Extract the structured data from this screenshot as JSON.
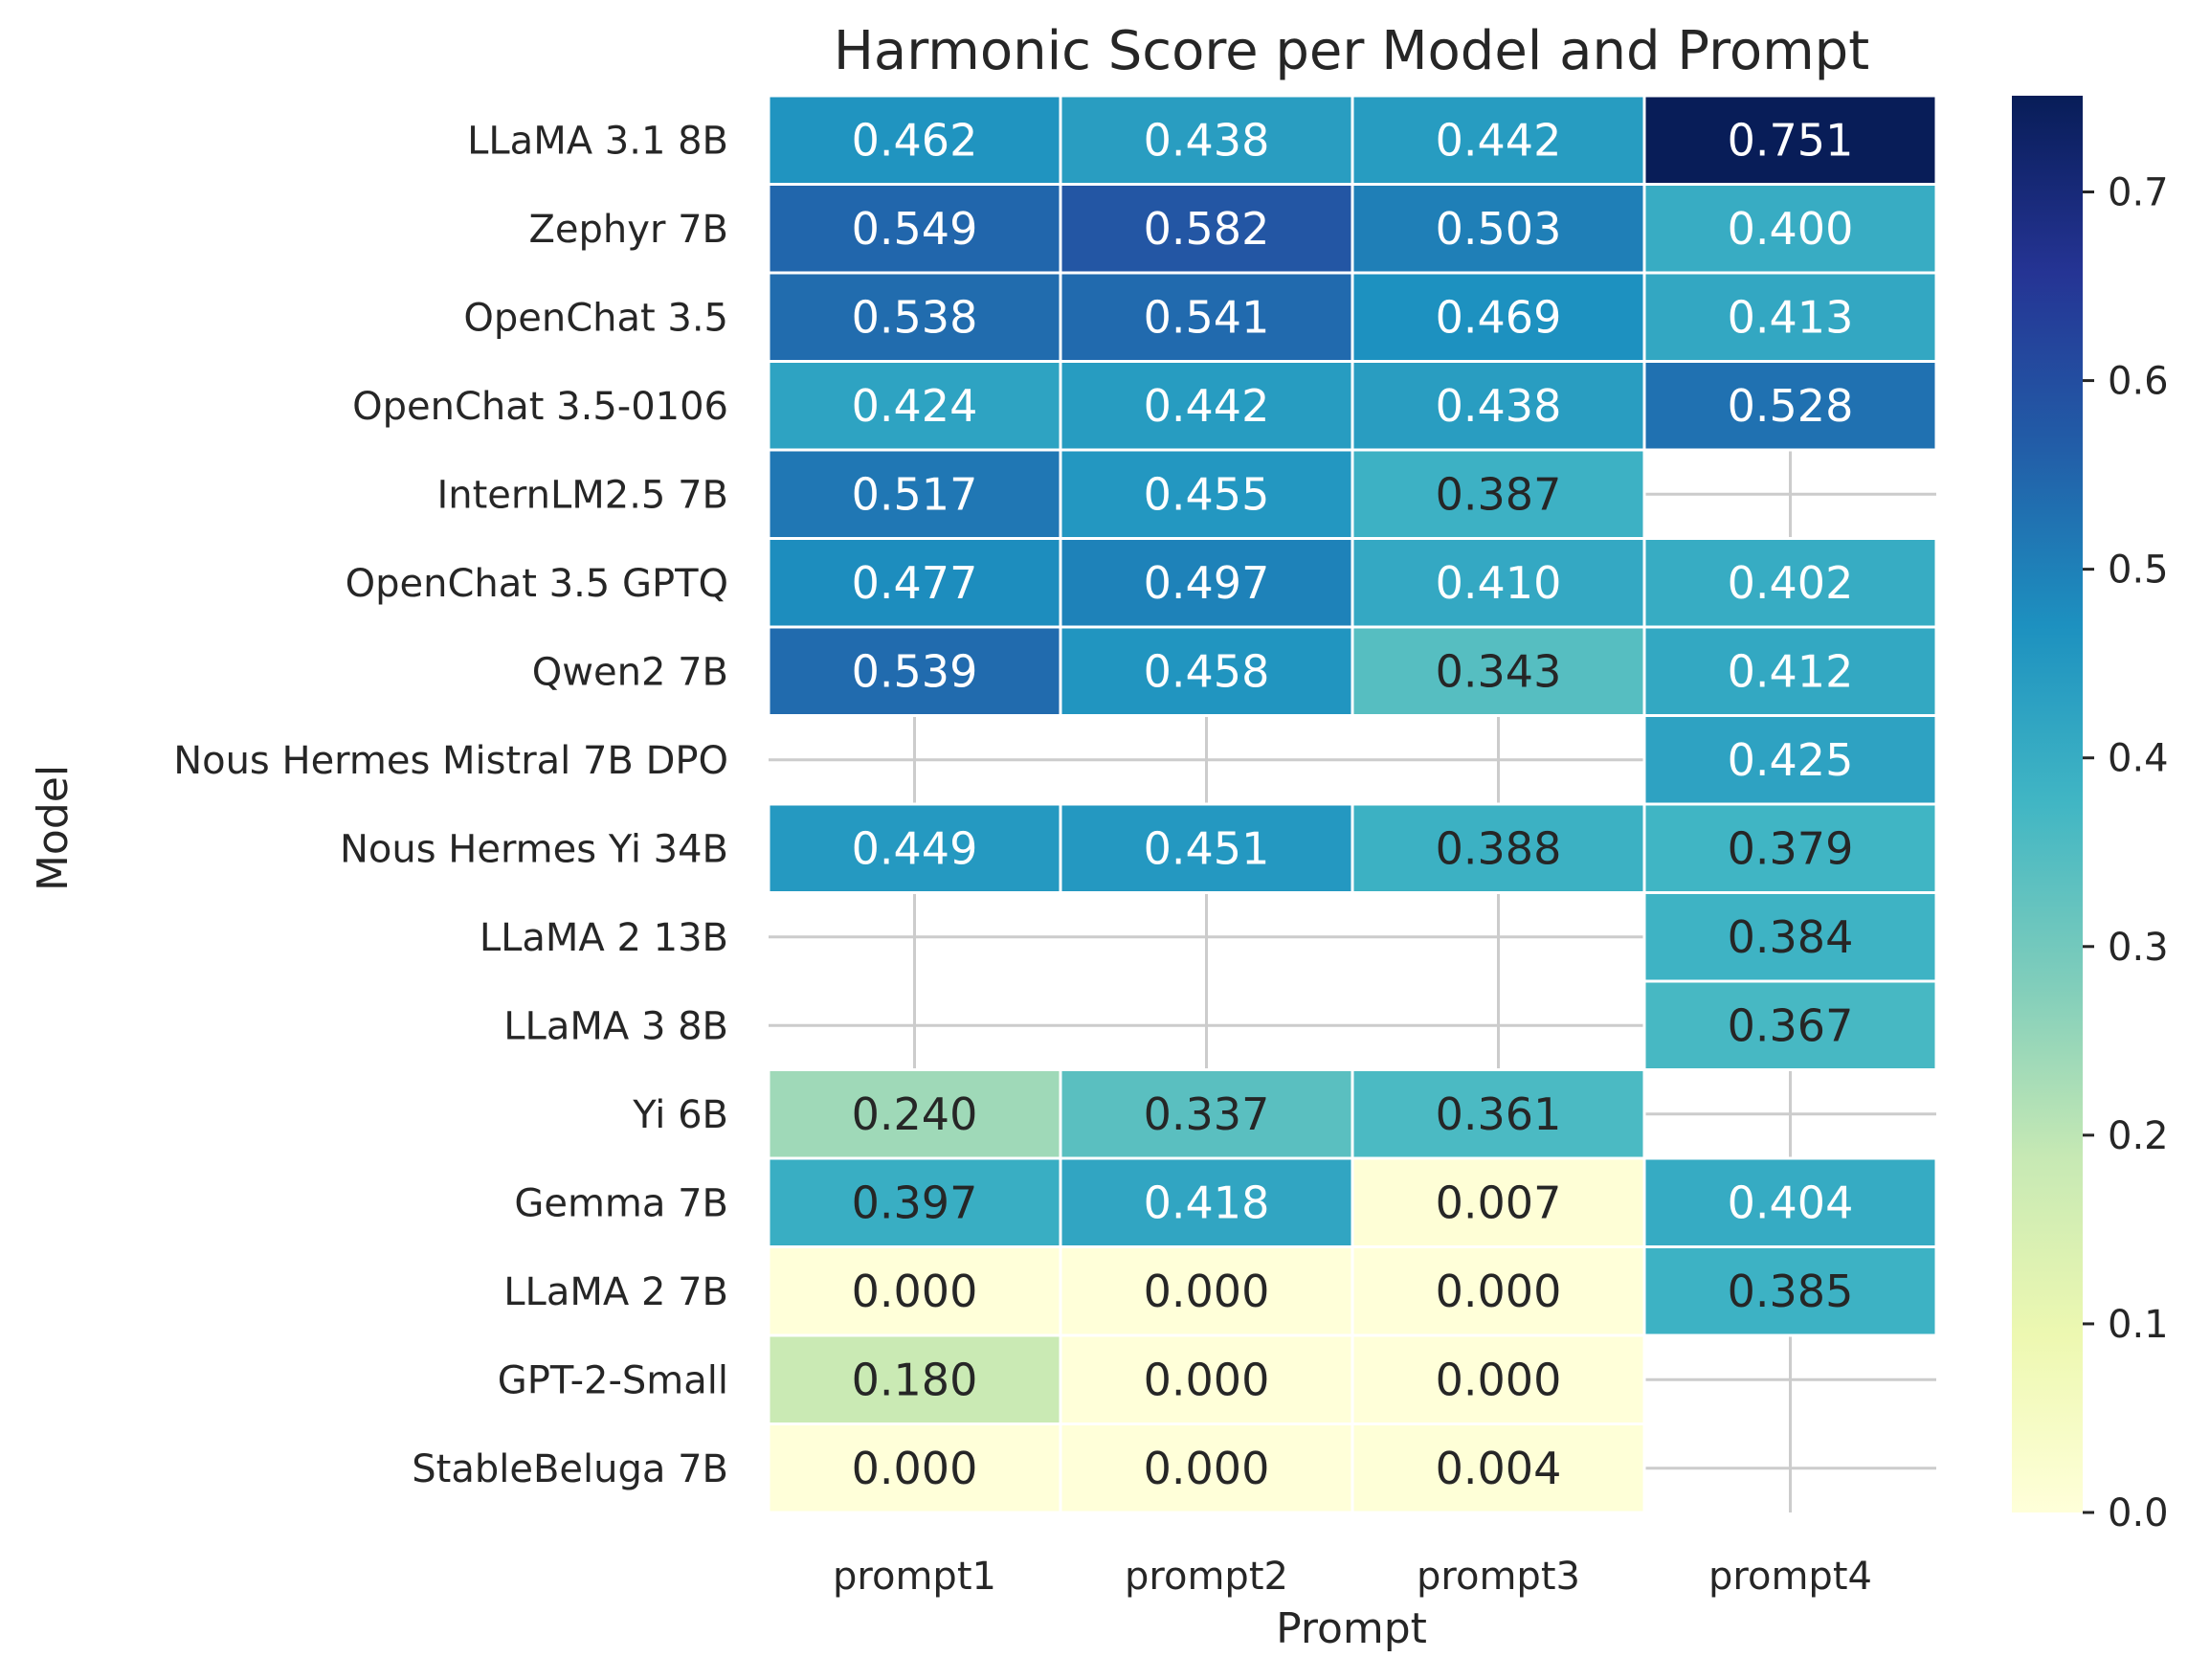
{
  "chart_data": {
    "type": "heatmap",
    "title": "Harmonic Score per Model and Prompt",
    "xlabel": "Prompt",
    "ylabel": "Model",
    "x_categories": [
      "prompt1",
      "prompt2",
      "prompt3",
      "prompt4"
    ],
    "y_categories": [
      "LLaMA 3.1 8B",
      "Zephyr 7B",
      "OpenChat 3.5",
      "OpenChat 3.5-0106",
      "InternLM2.5 7B",
      "OpenChat 3.5 GPTQ",
      "Qwen2 7B",
      "Nous Hermes Mistral 7B DPO",
      "Nous Hermes Yi 34B",
      "LLaMA 2 13B",
      "LLaMA 3 8B",
      "Yi 6B",
      "Gemma 7B",
      "LLaMA 2 7B",
      "GPT-2-Small",
      "StableBeluga 7B"
    ],
    "values": [
      [
        0.462,
        0.438,
        0.442,
        0.751
      ],
      [
        0.549,
        0.582,
        0.503,
        0.4
      ],
      [
        0.538,
        0.541,
        0.469,
        0.413
      ],
      [
        0.424,
        0.442,
        0.438,
        0.528
      ],
      [
        0.517,
        0.455,
        0.387,
        null
      ],
      [
        0.477,
        0.497,
        0.41,
        0.402
      ],
      [
        0.539,
        0.458,
        0.343,
        0.412
      ],
      [
        null,
        null,
        null,
        0.425
      ],
      [
        0.449,
        0.451,
        0.388,
        0.379
      ],
      [
        null,
        null,
        null,
        0.384
      ],
      [
        null,
        null,
        null,
        0.367
      ],
      [
        0.24,
        0.337,
        0.361,
        null
      ],
      [
        0.397,
        0.418,
        0.007,
        0.404
      ],
      [
        0.0,
        0.0,
        0.0,
        0.385
      ],
      [
        0.18,
        0.0,
        0.0,
        null
      ],
      [
        0.0,
        0.0,
        0.004,
        null
      ]
    ],
    "value_format": "0.000",
    "colormap": "YlGnBu",
    "colormap_stops": [
      "#ffffd9",
      "#edf8b1",
      "#c7e9b4",
      "#7fcdbb",
      "#41b6c4",
      "#1d91c0",
      "#225ea8",
      "#253494",
      "#081d58"
    ],
    "vmin": 0.0,
    "vmax": 0.751,
    "colorbar_ticks": [
      "0.0",
      "0.1",
      "0.2",
      "0.3",
      "0.4",
      "0.5",
      "0.6",
      "0.7"
    ],
    "grid": true,
    "grid_color": "#cccccc"
  }
}
